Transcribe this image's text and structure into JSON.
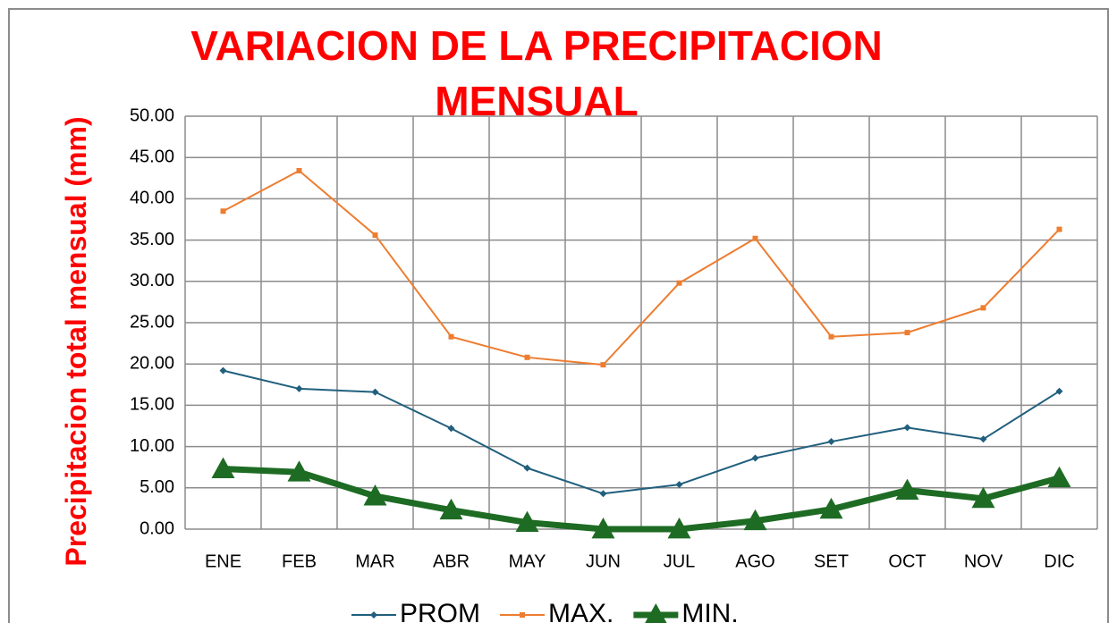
{
  "chart_data": {
    "type": "line",
    "title": "VARIACION DE LA PRECIPITACION MENSUAL",
    "y_label": "Precipitacion total mensual (mm)",
    "categories": [
      "ENE",
      "FEB",
      "MAR",
      "ABR",
      "MAY",
      "JUN",
      "JUL",
      "AGO",
      "SET",
      "OCT",
      "NOV",
      "DIC"
    ],
    "series": [
      {
        "name": "PROM",
        "color": "#215f7e",
        "marker": "diamond",
        "width": 2,
        "values": [
          19.2,
          17.0,
          16.6,
          12.2,
          7.4,
          4.3,
          5.4,
          8.6,
          10.6,
          12.3,
          10.9,
          16.7
        ]
      },
      {
        "name": "MAX.",
        "color": "#ed7d31",
        "marker": "square",
        "width": 2,
        "values": [
          38.5,
          43.4,
          35.6,
          23.3,
          20.8,
          19.9,
          29.8,
          35.2,
          23.3,
          23.8,
          26.8,
          36.3
        ]
      },
      {
        "name": "MIN.",
        "color": "#1e6b24",
        "marker": "triangle",
        "width": 7,
        "values": [
          7.3,
          6.9,
          4.0,
          2.3,
          0.8,
          0.0,
          0.0,
          1.0,
          2.4,
          4.7,
          3.7,
          6.2
        ]
      }
    ],
    "ylim": [
      0,
      50
    ],
    "yticks": [
      {
        "value": 0,
        "label": "0.00"
      },
      {
        "value": 5,
        "label": "5.00"
      },
      {
        "value": 10,
        "label": "10.00"
      },
      {
        "value": 15,
        "label": "15.00"
      },
      {
        "value": 20,
        "label": "20.00"
      },
      {
        "value": 25,
        "label": "25.00"
      },
      {
        "value": 30,
        "label": "30.00"
      },
      {
        "value": 35,
        "label": "35.00"
      },
      {
        "value": 40,
        "label": "40.00"
      },
      {
        "value": 45,
        "label": "45.00"
      },
      {
        "value": 50,
        "label": "50.00"
      }
    ],
    "grid": true,
    "legend": "bottom"
  }
}
